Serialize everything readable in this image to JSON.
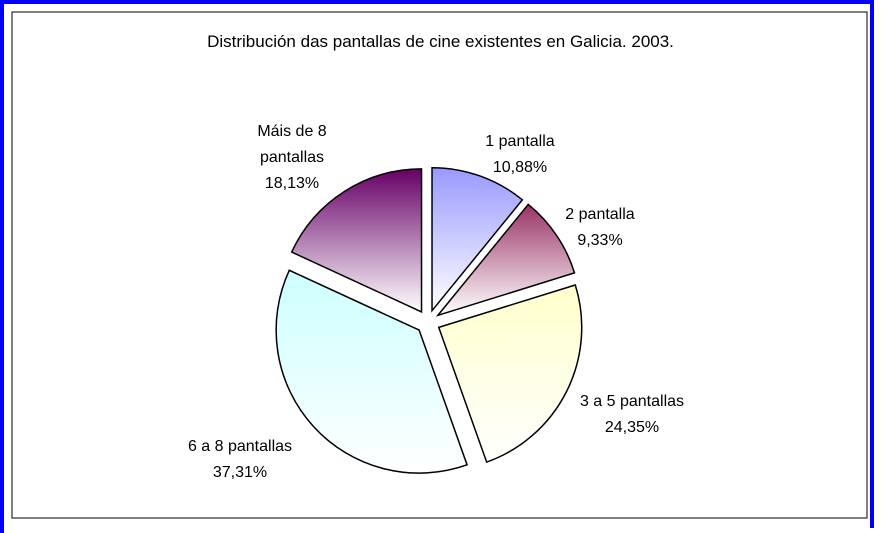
{
  "chart_data": {
    "type": "pie",
    "title": "Distribución das pantallas de cine existentes en Galicia. 2003.",
    "categories": [
      "1 pantalla",
      "2 pantalla",
      "3 a 5 pantallas",
      "6 a 8 pantallas",
      "Máis de 8 pantallas"
    ],
    "values": [
      10.88,
      9.33,
      24.35,
      37.31,
      18.13
    ],
    "value_labels": [
      "10,88%",
      "9,33%",
      "24,35%",
      "37,31%",
      "18,13%"
    ],
    "colors": [
      "#9999ff",
      "#993366",
      "#ffffcc",
      "#ccffff",
      "#660066"
    ]
  }
}
